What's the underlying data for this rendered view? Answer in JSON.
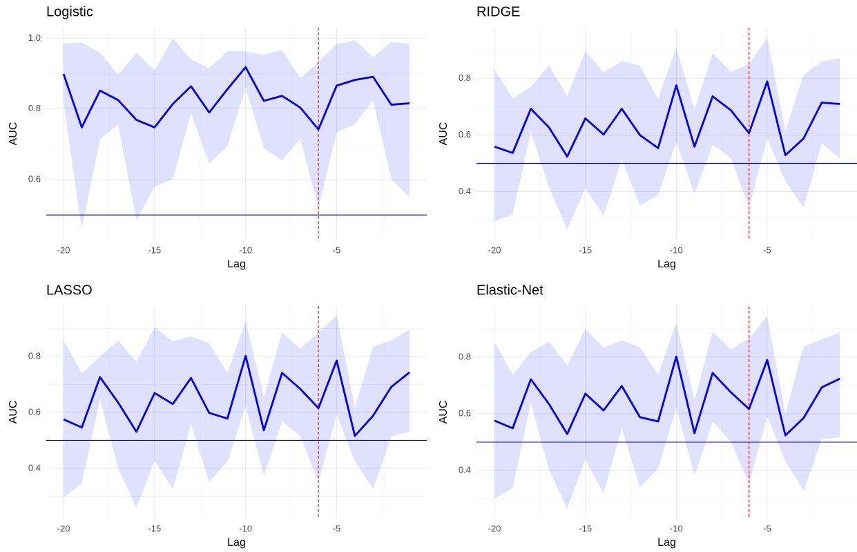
{
  "chart_data": [
    {
      "type": "line",
      "title": "Logistic",
      "xlabel": "Lag",
      "ylabel": "AUC",
      "x": [
        -20,
        -19,
        -18,
        -17,
        -16,
        -15,
        -14,
        -13,
        -12,
        -11,
        -10,
        -9,
        -8,
        -7,
        -6,
        -5,
        -4,
        -3,
        -2,
        -1
      ],
      "values": [
        0.899,
        0.748,
        0.852,
        0.825,
        0.769,
        0.748,
        0.814,
        0.864,
        0.79,
        0.856,
        0.918,
        0.823,
        0.837,
        0.804,
        0.742,
        0.866,
        0.882,
        0.891,
        0.812,
        0.816
      ],
      "upper": [
        0.984,
        0.988,
        0.959,
        0.897,
        0.959,
        0.909,
        1.0,
        0.94,
        0.915,
        0.963,
        0.963,
        0.953,
        0.967,
        0.887,
        0.932,
        0.983,
        0.994,
        0.946,
        0.99,
        0.984
      ],
      "lower": [
        0.816,
        0.462,
        0.714,
        0.757,
        0.485,
        0.58,
        0.602,
        0.788,
        0.645,
        0.695,
        0.862,
        0.689,
        0.654,
        0.716,
        0.52,
        0.734,
        0.757,
        0.825,
        0.602,
        0.551
      ],
      "color": "#0000ee",
      "band_color": "#0000ff",
      "hline": 0.5,
      "hline_color": "#0000ee",
      "vline": -6,
      "vline_color": "#ff0000",
      "xlim": [
        -20.95,
        -0.05
      ],
      "ylim": [
        0.43,
        1.03
      ],
      "xticks": [
        -20,
        -15,
        -10,
        -5
      ],
      "xminorticks": [
        -17.5,
        -12.5,
        -7.5,
        -2.5
      ],
      "yticks": [
        0.6,
        0.8,
        {
          "value": 1,
          "label": "1.0"
        }
      ],
      "yminorticks": [
        0.5,
        0.7,
        0.9
      ],
      "grid": true
    },
    {
      "type": "line",
      "title": "RIDGE",
      "xlabel": "Lag",
      "ylabel": "AUC",
      "x": [
        -20,
        -19,
        -18,
        -17,
        -16,
        -15,
        -14,
        -13,
        -12,
        -11,
        -10,
        -9,
        -8,
        -7,
        -6,
        -5,
        -4,
        -3,
        -2,
        -1
      ],
      "values": [
        0.559,
        0.537,
        0.693,
        0.627,
        0.524,
        0.659,
        0.602,
        0.693,
        0.6,
        0.554,
        0.776,
        0.559,
        0.737,
        0.688,
        0.607,
        0.79,
        0.529,
        0.588,
        0.715,
        0.71
      ],
      "upper": [
        0.832,
        0.729,
        0.771,
        0.846,
        0.737,
        0.898,
        0.822,
        0.861,
        0.846,
        0.727,
        0.91,
        0.69,
        0.89,
        0.824,
        0.851,
        0.944,
        0.615,
        0.812,
        0.861,
        0.871
      ],
      "lower": [
        0.295,
        0.32,
        0.612,
        0.417,
        0.266,
        0.412,
        0.315,
        0.515,
        0.351,
        0.388,
        0.576,
        0.393,
        0.566,
        0.52,
        0.344,
        0.588,
        0.437,
        0.344,
        0.571,
        0.517
      ],
      "color": "#0000ee",
      "band_color": "#0000ff",
      "hline": 0.5,
      "hline_color": "#0000ee",
      "vline": -6,
      "vline_color": "#ff0000",
      "xlim": [
        -20.99,
        -0.06
      ],
      "ylim": [
        0.23,
        0.98
      ],
      "xticks": [
        -20,
        -15,
        -10,
        -5
      ],
      "xminorticks": [
        -17.5,
        -12.5,
        -7.5,
        -2.5
      ],
      "yticks": [
        0.4,
        0.6,
        0.8
      ],
      "yminorticks": [
        0.3,
        0.5,
        0.7,
        0.9
      ],
      "grid": true
    },
    {
      "type": "line",
      "title": "LASSO",
      "xlabel": "Lag",
      "ylabel": "AUC",
      "x": [
        -20,
        -19,
        -18,
        -17,
        -16,
        -15,
        -14,
        -13,
        -12,
        -11,
        -10,
        -9,
        -8,
        -7,
        -6,
        -5,
        -4,
        -3,
        -2,
        -1
      ],
      "values": [
        0.575,
        0.546,
        0.726,
        0.635,
        0.531,
        0.669,
        0.63,
        0.723,
        0.598,
        0.578,
        0.802,
        0.536,
        0.741,
        0.684,
        0.615,
        0.785,
        0.516,
        0.588,
        0.691,
        0.743
      ],
      "upper": [
        0.859,
        0.738,
        0.8,
        0.857,
        0.78,
        0.904,
        0.854,
        0.872,
        0.847,
        0.741,
        0.926,
        0.654,
        0.886,
        0.827,
        0.886,
        0.946,
        0.615,
        0.835,
        0.857,
        0.896
      ],
      "lower": [
        0.296,
        0.346,
        0.647,
        0.4,
        0.259,
        0.427,
        0.326,
        0.558,
        0.351,
        0.425,
        0.622,
        0.375,
        0.568,
        0.516,
        0.351,
        0.593,
        0.425,
        0.326,
        0.514,
        0.531
      ],
      "color": "#0000ee",
      "band_color": "#0000ff",
      "hline": 0.5,
      "hline_color": "#0000ee",
      "vline": -6,
      "vline_color": "#ff0000",
      "xlim": [
        -20.95,
        -0.05
      ],
      "ylim": [
        0.222,
        0.98
      ],
      "xticks": [
        -20,
        -15,
        -10,
        -5
      ],
      "xminorticks": [
        -17.5,
        -12.5,
        -7.5,
        -2.5
      ],
      "yticks": [
        0.4,
        0.6,
        0.8
      ],
      "yminorticks": [
        0.3,
        0.5,
        0.7,
        0.9
      ],
      "grid": true
    },
    {
      "type": "line",
      "title": "Elastic-Net",
      "xlabel": "Lag",
      "ylabel": "AUC",
      "x": [
        -20,
        -19,
        -18,
        -17,
        -16,
        -15,
        -14,
        -13,
        -12,
        -11,
        -10,
        -9,
        -8,
        -7,
        -6,
        -5,
        -4,
        -3,
        -2,
        -1
      ],
      "values": [
        0.576,
        0.549,
        0.722,
        0.634,
        0.529,
        0.671,
        0.612,
        0.698,
        0.588,
        0.573,
        0.802,
        0.532,
        0.744,
        0.676,
        0.617,
        0.79,
        0.524,
        0.585,
        0.693,
        0.724
      ],
      "upper": [
        0.854,
        0.737,
        0.817,
        0.854,
        0.771,
        0.9,
        0.834,
        0.859,
        0.834,
        0.739,
        0.92,
        0.649,
        0.89,
        0.827,
        0.866,
        0.944,
        0.598,
        0.837,
        0.863,
        0.885
      ],
      "lower": [
        0.3,
        0.339,
        0.639,
        0.402,
        0.266,
        0.439,
        0.32,
        0.549,
        0.341,
        0.407,
        0.622,
        0.383,
        0.573,
        0.502,
        0.354,
        0.59,
        0.434,
        0.329,
        0.51,
        0.517
      ],
      "color": "#0000ee",
      "band_color": "#0000ff",
      "hline": 0.5,
      "hline_color": "#0000ee",
      "vline": -6,
      "vline_color": "#ff0000",
      "xlim": [
        -20.99,
        -0.06
      ],
      "ylim": [
        0.232,
        0.98
      ],
      "xticks": [
        -20,
        -15,
        -10,
        -5
      ],
      "xminorticks": [
        -17.5,
        -12.5,
        -7.5,
        -2.5
      ],
      "yticks": [
        0.4,
        0.6,
        0.8
      ],
      "yminorticks": [
        0.3,
        0.5,
        0.7,
        0.9
      ],
      "grid": true
    }
  ]
}
